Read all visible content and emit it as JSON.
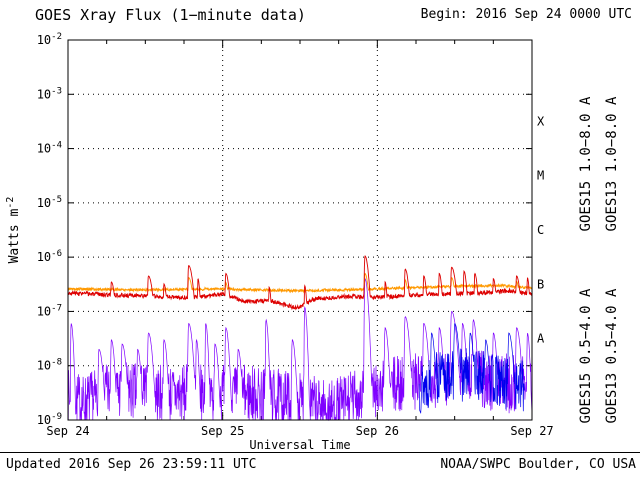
{
  "header": {
    "title": "GOES Xray Flux (1−minute data)",
    "begin": "Begin: 2016 Sep 24 0000 UTC"
  },
  "footer": {
    "updated": "Updated 2016 Sep 26 23:59:11 UTC",
    "source": "NOAA/SWPC Boulder, CO USA"
  },
  "chart_data": {
    "type": "line",
    "title": "GOES Xray Flux (1-minute data)",
    "xlabel": "Universal Time",
    "ylabel_base": "Watts m",
    "ylabel_exp": "-2",
    "x_range_days": [
      0,
      3
    ],
    "x_ticks": [
      {
        "day": 0,
        "label": "Sep 24"
      },
      {
        "day": 1,
        "label": "Sep 25"
      },
      {
        "day": 2,
        "label": "Sep 26"
      },
      {
        "day": 3,
        "label": "Sep 27"
      }
    ],
    "y_exponents": [
      -2,
      -3,
      -4,
      -5,
      -6,
      -7,
      -8,
      -9
    ],
    "ylim": [
      1e-09,
      0.01
    ],
    "grid": {
      "h_exponents": [
        -3,
        -4,
        -5,
        -6,
        -7,
        -8
      ],
      "v_days": [
        1,
        2
      ]
    },
    "minor_tick_day_step": 0.25,
    "flare_classes": [
      {
        "label": "X",
        "center_log": -3.5
      },
      {
        "label": "M",
        "center_log": -4.5
      },
      {
        "label": "C",
        "center_log": -5.5
      },
      {
        "label": "B",
        "center_log": -6.5
      },
      {
        "label": "A",
        "center_log": -7.5
      }
    ],
    "right_labels": [
      {
        "text": "GOES15 1.0−8.0 A",
        "color": "#dd0000"
      },
      {
        "text": "GOES13 1.0−8.0 A",
        "color": "#ff9900"
      },
      {
        "text": "GOES15 0.5−4.0 A",
        "color": "#7f00ff"
      },
      {
        "text": "GOES13 0.5−4.0 A",
        "color": "#0000ee"
      }
    ],
    "samples_per_day": 480,
    "series": [
      {
        "name": "GOES15 0.5-4.0 A",
        "color": "#7f00ff",
        "seed": 7,
        "noise_log": 0.55,
        "width": 0.7,
        "anchors": [
          [
            0,
            2.5e-09
          ],
          [
            0.1,
            2e-09
          ],
          [
            0.3,
            3.5e-09
          ],
          [
            0.6,
            3e-09
          ],
          [
            0.9,
            3e-09
          ],
          [
            1.2,
            3e-09
          ],
          [
            1.55,
            2e-09
          ],
          [
            1.7,
            1.5e-09
          ],
          [
            1.9,
            3e-09
          ],
          [
            2.2,
            5e-09
          ],
          [
            2.5,
            6e-09
          ],
          [
            2.8,
            5e-09
          ],
          [
            3,
            4e-09
          ]
        ],
        "spikes": [
          [
            0.02,
            0.006,
            6e-08
          ],
          [
            0.2,
            0.01,
            2e-08
          ],
          [
            0.28,
            0.008,
            3e-08
          ],
          [
            0.35,
            0.01,
            2.5e-08
          ],
          [
            0.45,
            0.008,
            2e-08
          ],
          [
            0.52,
            0.01,
            4e-08
          ],
          [
            0.62,
            0.008,
            3e-08
          ],
          [
            0.78,
            0.01,
            6e-08
          ],
          [
            0.83,
            0.006,
            3e-08
          ],
          [
            0.89,
            0.006,
            6e-08
          ],
          [
            0.95,
            0.008,
            2.5e-08
          ],
          [
            1.02,
            0.008,
            5e-08
          ],
          [
            1.1,
            0.008,
            2e-08
          ],
          [
            1.28,
            0.006,
            7e-08
          ],
          [
            1.45,
            0.008,
            3e-08
          ],
          [
            1.53,
            0.006,
            1.2e-07
          ],
          [
            1.92,
            0.008,
            4e-07
          ],
          [
            2.05,
            0.008,
            5e-08
          ],
          [
            2.18,
            0.01,
            8e-08
          ],
          [
            2.3,
            0.01,
            6e-08
          ],
          [
            2.4,
            0.008,
            5e-08
          ],
          [
            2.48,
            0.012,
            1e-07
          ],
          [
            2.55,
            0.008,
            6e-08
          ],
          [
            2.62,
            0.008,
            7e-08
          ],
          [
            2.75,
            0.008,
            4e-08
          ],
          [
            2.9,
            0.01,
            5e-08
          ],
          [
            2.97,
            0.006,
            4e-08
          ]
        ]
      },
      {
        "name": "GOES13 0.5-4.0 A",
        "color": "#0000ee",
        "seed": 13,
        "noise_log": 0.5,
        "width": 0.7,
        "x_range": [
          2.27,
          2.95
        ],
        "anchors": [
          [
            2.27,
            4e-09
          ],
          [
            2.4,
            6e-09
          ],
          [
            2.6,
            7e-09
          ],
          [
            2.8,
            5e-09
          ],
          [
            2.95,
            4e-09
          ]
        ],
        "spikes": [
          [
            2.35,
            0.008,
            4e-08
          ],
          [
            2.5,
            0.01,
            6e-08
          ],
          [
            2.6,
            0.008,
            4e-08
          ],
          [
            2.7,
            0.008,
            3e-08
          ],
          [
            2.85,
            0.01,
            4e-08
          ]
        ]
      },
      {
        "name": "GOES13 1.0-8.0 A",
        "color": "#ff9900",
        "seed": 5,
        "noise_log": 0.025,
        "width": 0.9,
        "anchors": [
          [
            0,
            2.6e-07
          ],
          [
            0.5,
            2.5e-07
          ],
          [
            1,
            2.6e-07
          ],
          [
            1.5,
            2.4e-07
          ],
          [
            2,
            2.6e-07
          ],
          [
            2.5,
            2.9e-07
          ],
          [
            2.8,
            3e-07
          ],
          [
            3,
            2.7e-07
          ]
        ],
        "spikes": [
          [
            0.78,
            0.012,
            4.2e-07
          ],
          [
            1.02,
            0.008,
            3.4e-07
          ],
          [
            1.92,
            0.01,
            5e-07
          ],
          [
            2.18,
            0.008,
            3.8e-07
          ],
          [
            2.48,
            0.01,
            4.2e-07
          ],
          [
            2.9,
            0.008,
            3.6e-07
          ]
        ]
      },
      {
        "name": "GOES15 1.0-8.0 A",
        "color": "#dd0000",
        "seed": 3,
        "noise_log": 0.04,
        "width": 0.9,
        "anchors": [
          [
            0,
            2.2e-07
          ],
          [
            0.3,
            2e-07
          ],
          [
            0.55,
            1.9e-07
          ],
          [
            0.8,
            1.8e-07
          ],
          [
            1.0,
            2.1e-07
          ],
          [
            1.15,
            1.5e-07
          ],
          [
            1.3,
            1.6e-07
          ],
          [
            1.48,
            1.15e-07
          ],
          [
            1.6,
            1.7e-07
          ],
          [
            1.8,
            1.9e-07
          ],
          [
            2.0,
            1.8e-07
          ],
          [
            2.2,
            2e-07
          ],
          [
            2.45,
            2.1e-07
          ],
          [
            2.7,
            2.2e-07
          ],
          [
            2.85,
            2.4e-07
          ],
          [
            3,
            2.1e-07
          ]
        ],
        "spikes": [
          [
            0.28,
            0.01,
            3.5e-07
          ],
          [
            0.52,
            0.012,
            4.5e-07
          ],
          [
            0.62,
            0.008,
            3.2e-07
          ],
          [
            0.78,
            0.012,
            7e-07
          ],
          [
            0.84,
            0.006,
            4e-07
          ],
          [
            1.02,
            0.01,
            5e-07
          ],
          [
            1.3,
            0.006,
            2.8e-07
          ],
          [
            1.53,
            0.006,
            3e-07
          ],
          [
            1.92,
            0.01,
            1.05e-06
          ],
          [
            2.05,
            0.006,
            3.5e-07
          ],
          [
            2.18,
            0.01,
            6e-07
          ],
          [
            2.3,
            0.008,
            4.5e-07
          ],
          [
            2.4,
            0.008,
            5e-07
          ],
          [
            2.48,
            0.012,
            6.5e-07
          ],
          [
            2.56,
            0.008,
            5.5e-07
          ],
          [
            2.63,
            0.008,
            5e-07
          ],
          [
            2.75,
            0.008,
            4e-07
          ],
          [
            2.9,
            0.01,
            4.5e-07
          ],
          [
            2.97,
            0.006,
            4.2e-07
          ]
        ]
      }
    ]
  }
}
